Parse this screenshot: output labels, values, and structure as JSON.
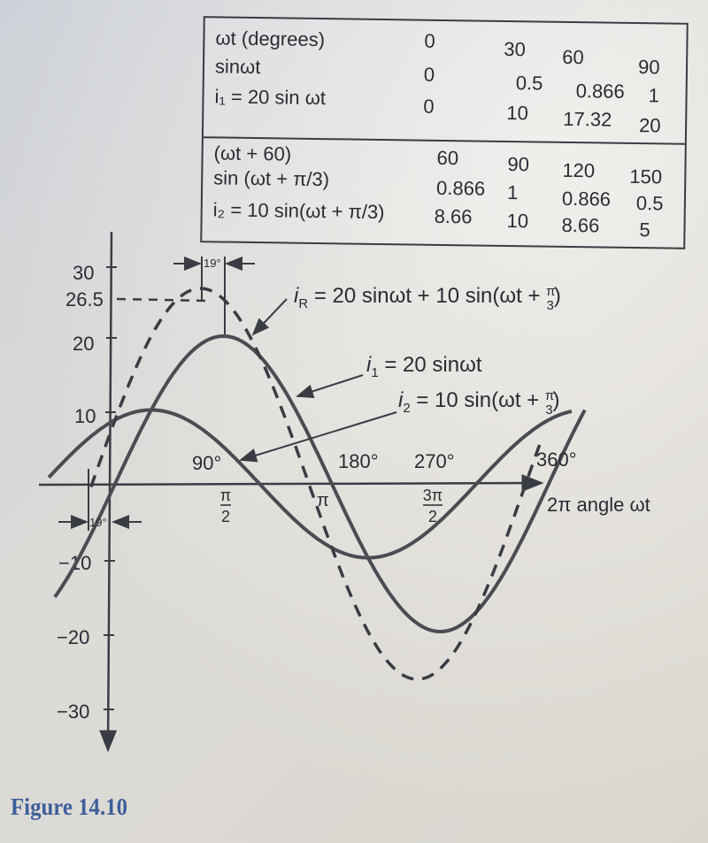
{
  "table": {
    "rows": [
      {
        "label": "ωt (degrees)",
        "values": [
          "0",
          "30",
          "60",
          "90"
        ]
      },
      {
        "label": "sinωt",
        "values": [
          "0",
          "0.5",
          "0.866",
          "1"
        ]
      },
      {
        "label": "i₁ = 20 sin ωt",
        "values": [
          "0",
          "10",
          "17.32",
          "20"
        ]
      },
      {
        "label": "(ωt + 60)",
        "values": [
          "60",
          "90",
          "120",
          "150"
        ]
      },
      {
        "label": "sin (ωt + π/3)",
        "values": [
          "0.866",
          "1",
          "0.866",
          "0.5"
        ]
      },
      {
        "label": "i₂ = 10 sin(ωt + π/3)",
        "values": [
          "8.66",
          "10",
          "8.66",
          "5"
        ]
      }
    ]
  },
  "chart_data": {
    "type": "line",
    "y_ticks": [
      "30",
      "26.5",
      "20",
      "10",
      "−10",
      "−20",
      "−30"
    ],
    "x_angle_labels": [
      "90°",
      "180°",
      "270°",
      "360°"
    ],
    "x_radian_labels": [
      "π/2",
      "π",
      "3π/2"
    ],
    "x_axis_label": "2π angle ωt",
    "phase_labels": [
      "19°",
      "19°"
    ],
    "ylim": [
      -30,
      30
    ],
    "xlim_degrees": [
      -60,
      390
    ],
    "series": [
      {
        "name": "i₁ = 20 sinωt",
        "amplitude": 20,
        "phase_deg": 0,
        "style": "solid"
      },
      {
        "name": "i₂ = 10 sin(ωt + π/3)",
        "amplitude": 10,
        "phase_deg": 60,
        "style": "solid"
      },
      {
        "name": "i_R = 20 sinωt + 10 sin(ωt + π/3)",
        "amplitude": 26.46,
        "phase_deg": 19.1,
        "style": "dashed"
      }
    ],
    "annotations": [
      {
        "text": "i_R = 20 sinωt + 10 sin(ωt + π/3)"
      },
      {
        "text": "i₁ = 20 sinωt"
      },
      {
        "text": "i₂ = 10 sin(ωt + π/3)"
      }
    ]
  },
  "caption": "Figure 14.10"
}
